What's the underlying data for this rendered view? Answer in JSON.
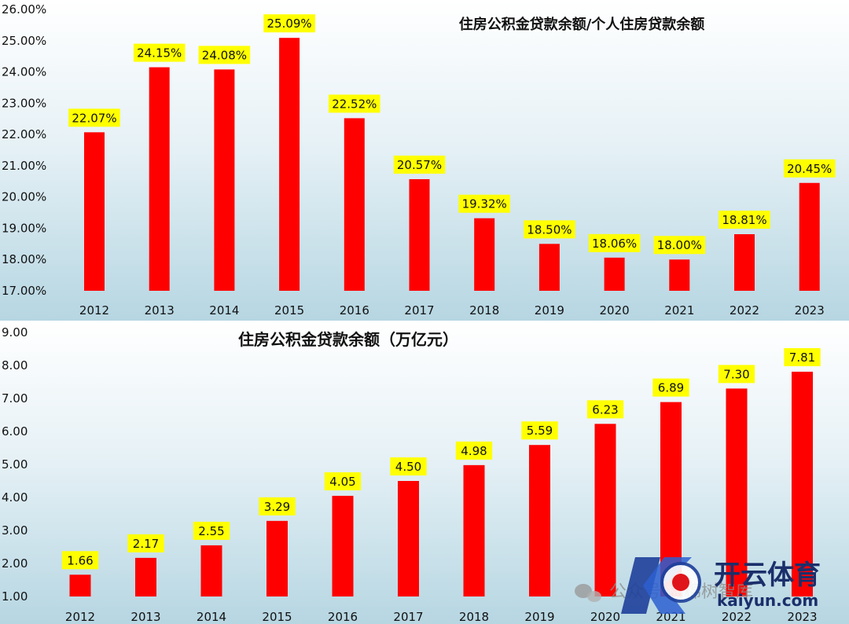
{
  "chart_data": [
    {
      "type": "bar",
      "title": "住房公积金贷款余额/个人住房贷款余额",
      "categories": [
        "2012",
        "2013",
        "2014",
        "2015",
        "2016",
        "2017",
        "2018",
        "2019",
        "2020",
        "2021",
        "2022",
        "2023"
      ],
      "values": [
        22.07,
        24.15,
        24.08,
        25.09,
        22.52,
        20.57,
        19.32,
        18.5,
        18.06,
        18.0,
        18.81,
        20.45
      ],
      "data_labels": [
        "22.07%",
        "24.15%",
        "24.08%",
        "25.09%",
        "22.52%",
        "20.57%",
        "19.32%",
        "18.50%",
        "18.06%",
        "18.00%",
        "18.81%",
        "20.45%"
      ],
      "y_ticks": [
        "17.00%",
        "18.00%",
        "19.00%",
        "20.00%",
        "21.00%",
        "22.00%",
        "23.00%",
        "24.00%",
        "25.00%",
        "26.00%"
      ],
      "ylim": [
        17,
        26
      ],
      "bar_color": "#ff0000",
      "label_bg": "#ffff00",
      "grid": false
    },
    {
      "type": "bar",
      "title": "住房公积金贷款余额（万亿元）",
      "categories": [
        "2012",
        "2013",
        "2014",
        "2015",
        "2016",
        "2017",
        "2018",
        "2019",
        "2020",
        "2021",
        "2022",
        "2023"
      ],
      "values": [
        1.66,
        2.17,
        2.55,
        3.29,
        4.05,
        4.5,
        4.98,
        5.59,
        6.23,
        6.89,
        7.3,
        7.81
      ],
      "data_labels": [
        "1.66",
        "2.17",
        "2.55",
        "3.29",
        "4.05",
        "4.50",
        "4.98",
        "5.59",
        "6.23",
        "6.89",
        "7.30",
        "7.81"
      ],
      "y_ticks": [
        "1.00",
        "2.00",
        "3.00",
        "4.00",
        "5.00",
        "6.00",
        "7.00",
        "8.00",
        "9.00"
      ],
      "ylim": [
        1,
        9
      ],
      "bar_color": "#ff0000",
      "label_bg": "#ffff00",
      "grid": false
    }
  ],
  "watermark": {
    "wechat_text": "公众号·棉棉树智库",
    "brand": "开云体育",
    "url": "kaiyun.com",
    "icon": "kaiyun-logo-icon"
  }
}
